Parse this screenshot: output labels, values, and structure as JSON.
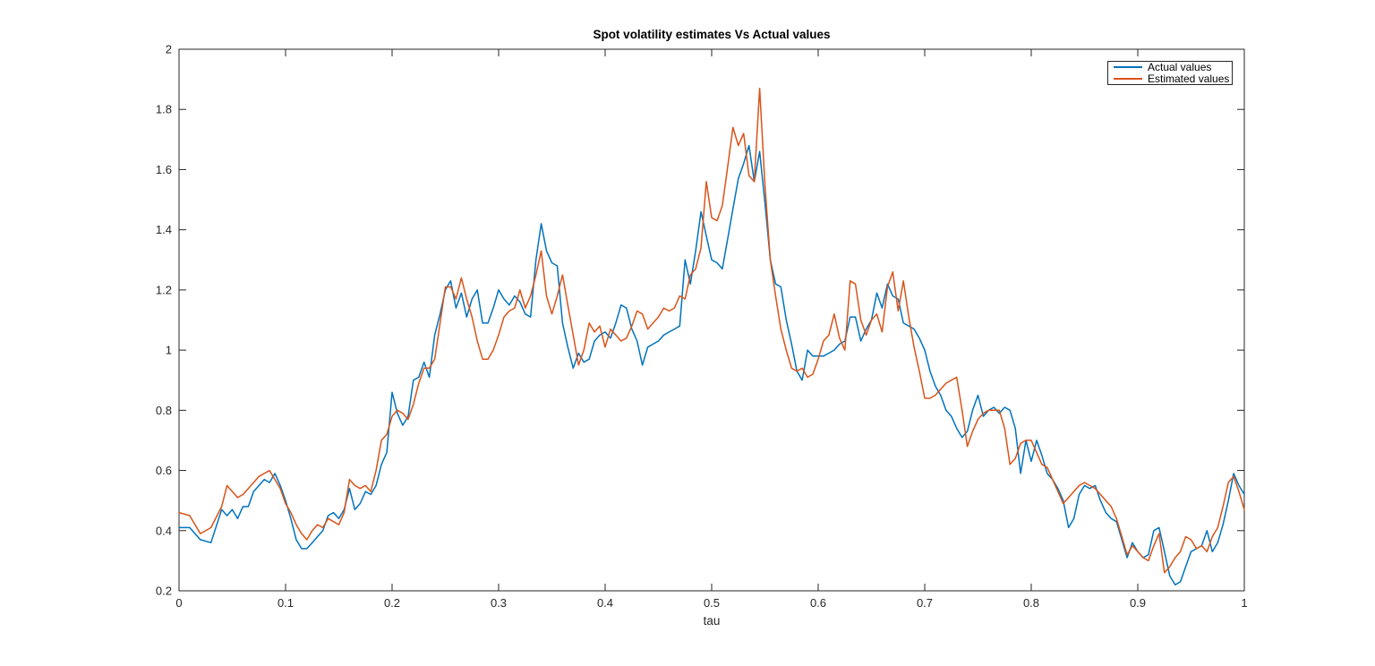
{
  "figure": {
    "background": "#ffffff",
    "axis_color": "#262626",
    "tick_label_color": "#262626"
  },
  "chart_data": {
    "type": "line",
    "title": "Spot volatility estimates Vs Actual values",
    "xlabel": "tau",
    "ylabel": "",
    "xlim": [
      0,
      1
    ],
    "ylim": [
      0.2,
      2
    ],
    "xticks": [
      0,
      0.1,
      0.2,
      0.3,
      0.4,
      0.5,
      0.6,
      0.7,
      0.8,
      0.9,
      1
    ],
    "yticks": [
      0.2,
      0.4,
      0.6,
      0.8,
      1,
      1.2,
      1.4,
      1.6,
      1.8,
      2
    ],
    "grid": false,
    "box": true,
    "legend_position": "northeast",
    "x": [
      0,
      0.01,
      0.02,
      0.03,
      0.04,
      0.045,
      0.05,
      0.055,
      0.06,
      0.065,
      0.07,
      0.075,
      0.08,
      0.085,
      0.09,
      0.095,
      0.1,
      0.105,
      0.11,
      0.115,
      0.12,
      0.125,
      0.13,
      0.135,
      0.14,
      0.145,
      0.15,
      0.155,
      0.16,
      0.165,
      0.17,
      0.175,
      0.18,
      0.185,
      0.19,
      0.195,
      0.2,
      0.205,
      0.21,
      0.215,
      0.22,
      0.225,
      0.23,
      0.235,
      0.24,
      0.245,
      0.25,
      0.255,
      0.26,
      0.265,
      0.27,
      0.275,
      0.28,
      0.285,
      0.29,
      0.295,
      0.3,
      0.305,
      0.31,
      0.315,
      0.32,
      0.325,
      0.33,
      0.335,
      0.34,
      0.345,
      0.35,
      0.355,
      0.36,
      0.365,
      0.37,
      0.375,
      0.38,
      0.385,
      0.39,
      0.395,
      0.4,
      0.405,
      0.41,
      0.415,
      0.42,
      0.425,
      0.43,
      0.435,
      0.44,
      0.445,
      0.45,
      0.455,
      0.46,
      0.465,
      0.47,
      0.475,
      0.48,
      0.485,
      0.49,
      0.495,
      0.5,
      0.505,
      0.51,
      0.515,
      0.52,
      0.525,
      0.53,
      0.535,
      0.54,
      0.545,
      0.55,
      0.555,
      0.56,
      0.565,
      0.57,
      0.575,
      0.58,
      0.585,
      0.59,
      0.595,
      0.6,
      0.605,
      0.61,
      0.615,
      0.62,
      0.625,
      0.63,
      0.635,
      0.64,
      0.645,
      0.65,
      0.655,
      0.66,
      0.665,
      0.67,
      0.675,
      0.68,
      0.685,
      0.69,
      0.695,
      0.7,
      0.705,
      0.71,
      0.715,
      0.72,
      0.725,
      0.73,
      0.735,
      0.74,
      0.745,
      0.75,
      0.755,
      0.76,
      0.765,
      0.77,
      0.775,
      0.78,
      0.785,
      0.79,
      0.795,
      0.8,
      0.805,
      0.81,
      0.815,
      0.82,
      0.825,
      0.83,
      0.835,
      0.84,
      0.845,
      0.85,
      0.855,
      0.86,
      0.865,
      0.87,
      0.875,
      0.88,
      0.885,
      0.89,
      0.895,
      0.9,
      0.905,
      0.91,
      0.915,
      0.92,
      0.925,
      0.93,
      0.935,
      0.94,
      0.945,
      0.95,
      0.955,
      0.96,
      0.965,
      0.97,
      0.975,
      0.98,
      0.985,
      0.99,
      0.995,
      1
    ],
    "series": [
      {
        "name": "Actual values",
        "color": "#0072BD",
        "values": [
          0.41,
          0.41,
          0.37,
          0.36,
          0.47,
          0.45,
          0.47,
          0.44,
          0.48,
          0.48,
          0.53,
          0.55,
          0.57,
          0.56,
          0.59,
          0.55,
          0.5,
          0.44,
          0.37,
          0.34,
          0.34,
          0.36,
          0.38,
          0.4,
          0.45,
          0.46,
          0.44,
          0.47,
          0.54,
          0.47,
          0.49,
          0.53,
          0.52,
          0.55,
          0.62,
          0.66,
          0.86,
          0.79,
          0.75,
          0.78,
          0.9,
          0.91,
          0.96,
          0.91,
          1.05,
          1.12,
          1.2,
          1.23,
          1.14,
          1.19,
          1.11,
          1.17,
          1.2,
          1.09,
          1.09,
          1.14,
          1.2,
          1.17,
          1.15,
          1.18,
          1.16,
          1.12,
          1.11,
          1.3,
          1.42,
          1.33,
          1.29,
          1.28,
          1.09,
          1.01,
          0.94,
          0.99,
          0.96,
          0.97,
          1.03,
          1.05,
          1.06,
          1.04,
          1.09,
          1.15,
          1.14,
          1.07,
          1.03,
          0.95,
          1.01,
          1.02,
          1.03,
          1.05,
          1.06,
          1.07,
          1.08,
          1.3,
          1.22,
          1.33,
          1.46,
          1.38,
          1.3,
          1.29,
          1.27,
          1.37,
          1.47,
          1.57,
          1.62,
          1.68,
          1.56,
          1.66,
          1.49,
          1.3,
          1.22,
          1.21,
          1.1,
          1.02,
          0.93,
          0.9,
          1.0,
          0.98,
          0.98,
          0.98,
          0.99,
          1.0,
          1.02,
          1.03,
          1.11,
          1.11,
          1.03,
          1.07,
          1.1,
          1.19,
          1.14,
          1.22,
          1.18,
          1.17,
          1.09,
          1.08,
          1.07,
          1.04,
          1.0,
          0.93,
          0.88,
          0.85,
          0.8,
          0.78,
          0.74,
          0.71,
          0.73,
          0.8,
          0.85,
          0.78,
          0.8,
          0.81,
          0.79,
          0.81,
          0.8,
          0.74,
          0.59,
          0.7,
          0.63,
          0.7,
          0.65,
          0.59,
          0.57,
          0.54,
          0.5,
          0.41,
          0.44,
          0.52,
          0.55,
          0.54,
          0.55,
          0.5,
          0.46,
          0.44,
          0.43,
          0.37,
          0.31,
          0.36,
          0.33,
          0.31,
          0.32,
          0.4,
          0.41,
          0.33,
          0.25,
          0.22,
          0.23,
          0.28,
          0.33,
          0.34,
          0.35,
          0.4,
          0.33,
          0.36,
          0.42,
          0.5,
          0.59,
          0.55,
          0.52
        ]
      },
      {
        "name": "Estimated values",
        "color": "#D95319",
        "values": [
          0.46,
          0.45,
          0.39,
          0.41,
          0.48,
          0.55,
          0.53,
          0.51,
          0.52,
          0.54,
          0.56,
          0.58,
          0.59,
          0.6,
          0.57,
          0.54,
          0.49,
          0.46,
          0.42,
          0.39,
          0.37,
          0.4,
          0.42,
          0.41,
          0.44,
          0.43,
          0.42,
          0.46,
          0.57,
          0.55,
          0.54,
          0.55,
          0.53,
          0.6,
          0.7,
          0.72,
          0.78,
          0.8,
          0.79,
          0.77,
          0.82,
          0.89,
          0.94,
          0.94,
          0.97,
          1.09,
          1.21,
          1.21,
          1.17,
          1.24,
          1.17,
          1.11,
          1.03,
          0.97,
          0.97,
          1.0,
          1.05,
          1.11,
          1.13,
          1.14,
          1.2,
          1.14,
          1.18,
          1.25,
          1.33,
          1.18,
          1.12,
          1.18,
          1.25,
          1.15,
          1.05,
          0.95,
          1.0,
          1.09,
          1.06,
          1.08,
          1.01,
          1.07,
          1.05,
          1.03,
          1.04,
          1.08,
          1.13,
          1.12,
          1.07,
          1.09,
          1.11,
          1.14,
          1.13,
          1.14,
          1.18,
          1.17,
          1.25,
          1.27,
          1.34,
          1.56,
          1.44,
          1.43,
          1.48,
          1.61,
          1.74,
          1.68,
          1.72,
          1.58,
          1.56,
          1.87,
          1.55,
          1.3,
          1.18,
          1.07,
          1.0,
          0.94,
          0.93,
          0.94,
          0.91,
          0.92,
          0.97,
          1.03,
          1.05,
          1.12,
          1.04,
          1.0,
          1.23,
          1.22,
          1.1,
          1.05,
          1.1,
          1.12,
          1.06,
          1.21,
          1.26,
          1.13,
          1.23,
          1.11,
          1.01,
          0.93,
          0.84,
          0.84,
          0.85,
          0.87,
          0.89,
          0.9,
          0.91,
          0.8,
          0.68,
          0.73,
          0.77,
          0.79,
          0.8,
          0.8,
          0.8,
          0.74,
          0.62,
          0.64,
          0.69,
          0.7,
          0.7,
          0.66,
          0.62,
          0.61,
          0.57,
          0.53,
          0.49,
          0.51,
          0.53,
          0.55,
          0.56,
          0.55,
          0.54,
          0.52,
          0.5,
          0.48,
          0.44,
          0.38,
          0.32,
          0.35,
          0.33,
          0.31,
          0.3,
          0.35,
          0.39,
          0.26,
          0.28,
          0.31,
          0.33,
          0.38,
          0.37,
          0.34,
          0.35,
          0.33,
          0.38,
          0.41,
          0.48,
          0.56,
          0.58,
          0.53,
          0.47
        ]
      }
    ]
  }
}
